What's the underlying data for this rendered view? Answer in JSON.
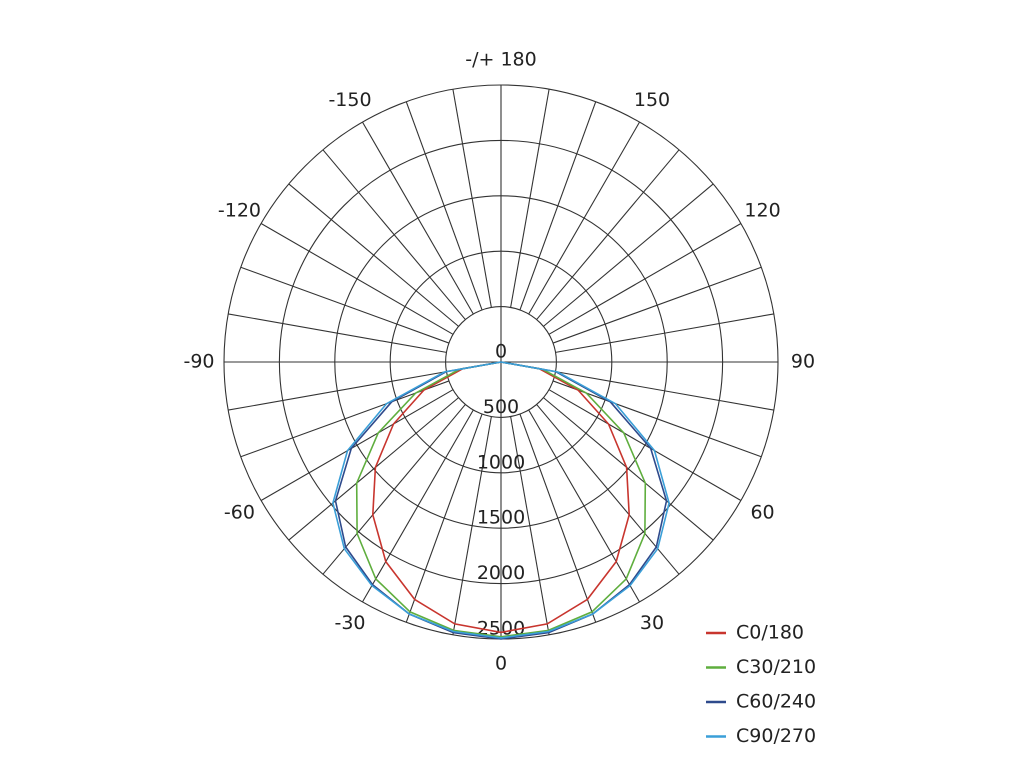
{
  "chart_data": {
    "type": "polar",
    "x": [
      -90,
      -80,
      -70,
      -60,
      -50,
      -40,
      -30,
      -20,
      -10,
      0,
      10,
      20,
      30,
      40,
      50,
      60,
      70,
      80,
      90
    ],
    "series": [
      {
        "name": "C0/180",
        "color": "#c8352e",
        "values": [
          0,
          350,
          740,
          1120,
          1480,
          1800,
          2080,
          2280,
          2400,
          2440,
          2400,
          2280,
          2080,
          1800,
          1480,
          1120,
          740,
          350,
          0
        ]
      },
      {
        "name": "C30/210",
        "color": "#5fae3e",
        "values": [
          0,
          380,
          820,
          1280,
          1700,
          2020,
          2260,
          2400,
          2460,
          2480,
          2460,
          2400,
          2260,
          2020,
          1700,
          1280,
          820,
          380,
          0
        ]
      },
      {
        "name": "C60/240",
        "color": "#2e4a8c",
        "values": [
          0,
          500,
          1050,
          1560,
          1950,
          2180,
          2320,
          2420,
          2480,
          2500,
          2480,
          2420,
          2320,
          2180,
          1950,
          1560,
          1050,
          500,
          0
        ]
      },
      {
        "name": "C90/270",
        "color": "#3a9fd8",
        "values": [
          0,
          520,
          1100,
          1600,
          1980,
          2200,
          2330,
          2420,
          2470,
          2490,
          2470,
          2420,
          2330,
          2200,
          1980,
          1600,
          1100,
          520,
          0
        ]
      }
    ],
    "rlim": [
      0,
      2500
    ],
    "rticks": [
      0,
      500,
      1000,
      1500,
      2000,
      2500
    ],
    "xticks": [
      -150,
      -120,
      -90,
      -60,
      -30,
      0,
      30,
      60,
      90,
      120,
      150,
      {
        "value": 180,
        "label": "-/+ 180"
      }
    ],
    "grid": true,
    "legend": "lower right"
  }
}
